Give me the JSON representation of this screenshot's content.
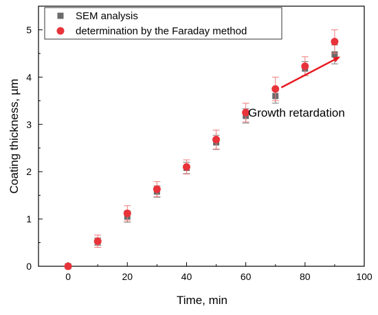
{
  "chart_data": {
    "type": "scatter",
    "title": "",
    "xlabel": "Time, min",
    "ylabel": "Coating thickness, µm",
    "xlim": [
      -10,
      100
    ],
    "ylim": [
      0,
      5.5
    ],
    "xticks": [
      0,
      20,
      40,
      60,
      80,
      100
    ],
    "yticks": [
      0,
      1,
      2,
      3,
      4,
      5
    ],
    "grid": false,
    "legend_position": "top-left",
    "series": [
      {
        "name": "SEM analysis",
        "marker": "square",
        "color": "#6b6b6b",
        "error_color": "#7a7a7a",
        "x": [
          0,
          10,
          20,
          30,
          40,
          50,
          60,
          70,
          80,
          90
        ],
        "y": [
          0.0,
          0.52,
          1.05,
          1.58,
          2.08,
          2.62,
          3.18,
          3.6,
          4.18,
          4.48
        ],
        "err": [
          0.0,
          0.08,
          0.12,
          0.12,
          0.12,
          0.15,
          0.15,
          0.15,
          0.15,
          0.2
        ]
      },
      {
        "name": "determination by the Faraday method",
        "marker": "circle",
        "color": "#e8333a",
        "error_color": "#f07a78",
        "x": [
          0,
          10,
          20,
          30,
          40,
          50,
          60,
          70,
          80,
          90
        ],
        "y": [
          0.0,
          0.53,
          1.12,
          1.63,
          2.1,
          2.68,
          3.25,
          3.75,
          4.23,
          4.75
        ],
        "err": [
          0.0,
          0.13,
          0.16,
          0.16,
          0.15,
          0.2,
          0.2,
          0.25,
          0.2,
          0.25
        ]
      }
    ],
    "annotations": [
      {
        "text": "Growth retardation",
        "arrow_from": [
          72,
          3.78
        ],
        "arrow_to": [
          91.5,
          4.42
        ],
        "arrow_color": "#e8191f"
      }
    ]
  }
}
